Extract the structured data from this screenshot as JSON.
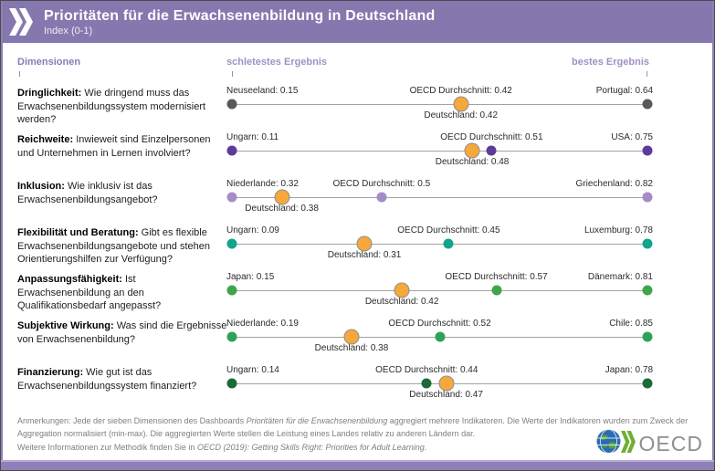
{
  "header": {
    "title": "Prioritäten für die Erwachsenenbildung in Deutschland",
    "subtitle": "Index (0-1)",
    "accent_color": "#8678ae"
  },
  "columns": {
    "dimensions_label": "Dimensionen",
    "worst_label": "schletestes Ergebnis",
    "best_label": "bestes Ergebnis"
  },
  "chart_data": {
    "type": "dot-plot",
    "x_mapping": "linear per row between worst (left end) and best (right end) value",
    "value_range": [
      0,
      1
    ],
    "germany_color": "#F6A83B",
    "series_roles": [
      "worst country",
      "OECD Durchschnitt",
      "Deutschland",
      "best country"
    ],
    "rows": [
      {
        "dimension": "Dringlichkeit",
        "question": "Wie dringend muss das Erwachsenenbildungssystem modernisiert werden?",
        "color": "#595959",
        "worst": {
          "label": "Neuseeland: 0.15",
          "value": 0.15
        },
        "oecd": {
          "label": "OECD Durchschnitt: 0.42",
          "value": 0.42
        },
        "germany": {
          "label": "Deutschland: 0.42",
          "value": 0.42
        },
        "best": {
          "label": "Portugal: 0.64",
          "value": 0.64
        }
      },
      {
        "dimension": "Reichweite",
        "question": "Inwieweit sind Einzelpersonen und Unternehmen in Lernen involviert?",
        "color": "#5b3c9b",
        "worst": {
          "label": "Ungarn: 0.11",
          "value": 0.11
        },
        "oecd": {
          "label": "OECD Durchschnitt: 0.51",
          "value": 0.51
        },
        "germany": {
          "label": "Deutschland: 0.48",
          "value": 0.48
        },
        "best": {
          "label": "USA: 0.75",
          "value": 0.75
        }
      },
      {
        "dimension": "Inklusion",
        "question": "Wie inklusiv ist das Erwachsenenbildungsangebot?",
        "color": "#a48cc8",
        "worst": {
          "label": "Niederlande: 0.32",
          "value": 0.32
        },
        "oecd": {
          "label": "OECD Durchschnitt: 0.5",
          "value": 0.5
        },
        "germany": {
          "label": "Deutschland: 0.38",
          "value": 0.38
        },
        "best": {
          "label": "Griechenland: 0.82",
          "value": 0.82
        }
      },
      {
        "dimension": "Flexibilität und Beratung",
        "question": "Gibt es flexible Erwachsenenbildungsangebote und stehen Orientierungshilfen zur Verfügung?",
        "color": "#14a38d",
        "worst": {
          "label": "Ungarn: 0.09",
          "value": 0.09
        },
        "oecd": {
          "label": "OECD Durchschnitt: 0.45",
          "value": 0.45
        },
        "germany": {
          "label": "Deutschland: 0.31",
          "value": 0.31
        },
        "best": {
          "label": "Luxemburg: 0.78",
          "value": 0.78
        }
      },
      {
        "dimension": "Anpassungsfähigkeit",
        "question": "Ist Erwachsenenbildung an den Qualifikationsbedarf angepasst?",
        "color": "#3fa54a",
        "worst": {
          "label": "Japan: 0.15",
          "value": 0.15
        },
        "oecd": {
          "label": "OECD Durchschnitt: 0.57",
          "value": 0.57
        },
        "germany": {
          "label": "Deutschland: 0.42",
          "value": 0.42
        },
        "best": {
          "label": "Dänemark: 0.81",
          "value": 0.81
        }
      },
      {
        "dimension": "Subjektive Wirkung",
        "question": "Was sind die Ergebnisse von Erwachsenenbildung?",
        "color": "#2fa258",
        "worst": {
          "label": "Niederlande: 0.19",
          "value": 0.19
        },
        "oecd": {
          "label": "OECD Durchschnitt: 0.52",
          "value": 0.52
        },
        "germany": {
          "label": "Deutschland: 0.38",
          "value": 0.38
        },
        "best": {
          "label": "Chile: 0.85",
          "value": 0.85
        }
      },
      {
        "dimension": "Finanzierung",
        "question": "Wie gut ist das Erwachsenenbildungssystem finanziert?",
        "color": "#1b6b3a",
        "worst": {
          "label": "Ungarn: 0.14",
          "value": 0.14
        },
        "oecd": {
          "label": "OECD Durchschnitt: 0.44",
          "value": 0.44
        },
        "germany": {
          "label": "Deutschland: 0.47",
          "value": 0.47
        },
        "best": {
          "label": "Japan: 0.78",
          "value": 0.78
        }
      }
    ]
  },
  "notes": {
    "line1_prefix": "Anmerkungen: Jede der sieben Dimensionen des Dashboards ",
    "line1_italic": "Prioritäten für die Erwachsenenbildung",
    "line1_suffix": " aggregiert mehrere Indikatoren. Die Werte der Indikatoren wurden zum Zweck der Aggregation normalisiert (min-max). Die aggregierten Werte stellen die Leistung eines Landes relativ zu anderen Ländern dar.",
    "line2_prefix": "Weitere Informationen zur Methodik finden Sie in ",
    "line2_italic": "OECD (2019): Getting Skills Right: Priorities for Adult Learning",
    "line2_suffix": "."
  },
  "logo": {
    "text": "OECD"
  }
}
